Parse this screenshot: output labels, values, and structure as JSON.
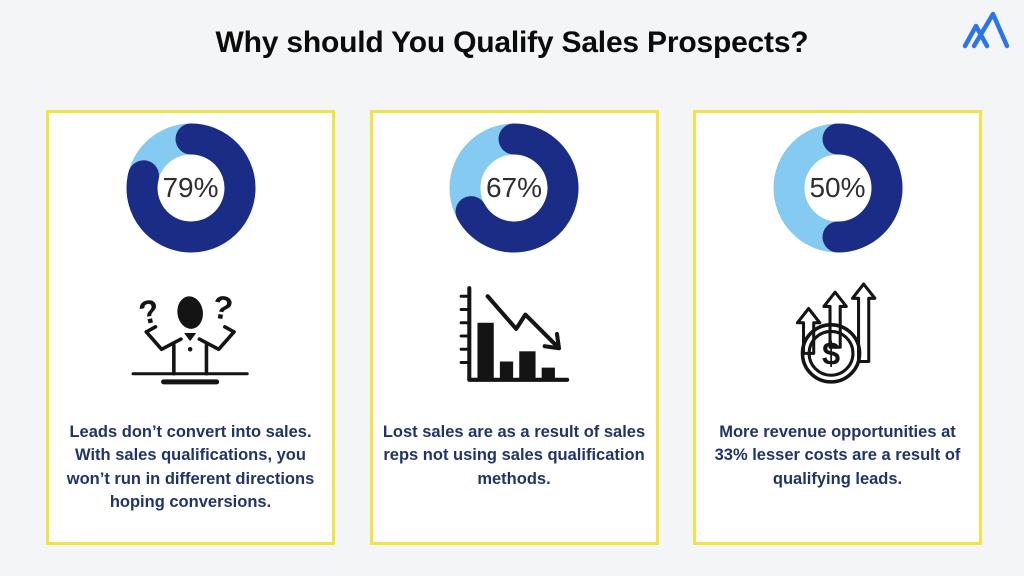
{
  "page": {
    "title": "Why should You Qualify Sales Prospects?",
    "background_color": "#f4f5f7"
  },
  "colors": {
    "donut_fill": "#1a2c85",
    "donut_track": "#85caf0",
    "card_border": "#f2e343",
    "text_navy": "#213468",
    "logo_blue": "#2b74ea",
    "title_color": "#0c0c0d",
    "icon_ink": "#141414"
  },
  "logo": {
    "name": "mountain-peaks-logo"
  },
  "chart_data": [
    {
      "type": "pie",
      "variant": "donut",
      "title": "Leads don't convert without qualification",
      "center_label": "79%",
      "labels": [
        "highlighted",
        "remainder"
      ],
      "values": [
        79,
        21
      ],
      "colors": [
        "#1a2c85",
        "#85caf0"
      ],
      "start_angle_deg": 0,
      "direction": "clockwise",
      "legend": "none"
    },
    {
      "type": "pie",
      "variant": "donut",
      "title": "Lost sales from reps not using qualification methods",
      "center_label": "67%",
      "labels": [
        "highlighted",
        "remainder"
      ],
      "values": [
        67,
        33
      ],
      "colors": [
        "#1a2c85",
        "#85caf0"
      ],
      "start_angle_deg": 0,
      "direction": "clockwise",
      "legend": "none"
    },
    {
      "type": "pie",
      "variant": "donut",
      "title": "More revenue opportunities at lesser cost",
      "center_label": "50%",
      "labels": [
        "highlighted",
        "remainder"
      ],
      "values": [
        50,
        50
      ],
      "colors": [
        "#1a2c85",
        "#85caf0"
      ],
      "start_angle_deg": 0,
      "direction": "clockwise",
      "legend": "none"
    }
  ],
  "cards": [
    {
      "percent": 79,
      "percent_label": "79%",
      "icon": "confused-person-icon",
      "description": "Leads don’t convert into sales. With sales qualifications, you won’t run in different directions hoping conversions."
    },
    {
      "percent": 67,
      "percent_label": "67%",
      "icon": "declining-bar-chart-icon",
      "description": "Lost sales are as a result of sales reps not using sales qualification methods."
    },
    {
      "percent": 50,
      "percent_label": "50%",
      "icon": "dollar-growth-arrows-icon",
      "description": "More revenue opportunities at 33% lesser costs are a result of qualifying leads."
    }
  ]
}
